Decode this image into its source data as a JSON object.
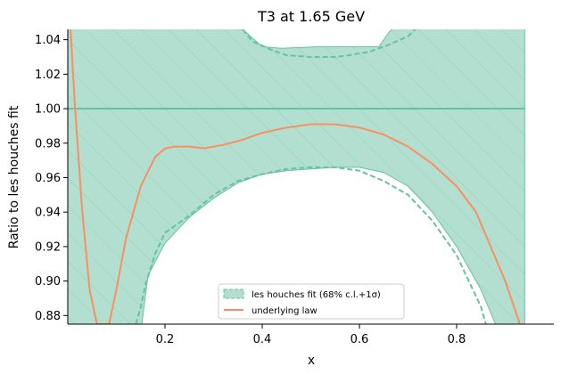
{
  "chart_data": {
    "type": "line",
    "title": "T3 at 1.65 GeV",
    "xlabel": "x",
    "ylabel": "Ratio to les houches fit",
    "xlim": [
      0.0,
      1.0
    ],
    "ylim": [
      0.875,
      1.046
    ],
    "xticks": [
      0.2,
      0.4,
      0.6,
      0.8
    ],
    "xtick_labels": [
      "0.2",
      "0.4",
      "0.6",
      "0.8"
    ],
    "yticks": [
      0.88,
      0.9,
      0.92,
      0.94,
      0.96,
      0.98,
      1.0,
      1.02,
      1.04
    ],
    "ytick_labels": [
      "0.88",
      "0.90",
      "0.92",
      "0.94",
      "0.96",
      "0.98",
      "1.00",
      "1.02",
      "1.04"
    ],
    "grid": false,
    "legend_position": "bottom-center",
    "colors": {
      "band": "#66c2a5",
      "band_fill": "#b2dfd0",
      "law": "#fc8d62"
    },
    "series": [
      {
        "name": "les houches fit (68% c.l.+1σ)",
        "kind": "band",
        "central": 1.0,
        "upper": [
          [
            0.0,
            1.05
          ],
          [
            0.18,
            1.05
          ],
          [
            0.36,
            1.046
          ],
          [
            0.4,
            1.036
          ],
          [
            0.44,
            1.035
          ],
          [
            0.52,
            1.036
          ],
          [
            0.6,
            1.036
          ],
          [
            0.64,
            1.036
          ],
          [
            0.66,
            1.044
          ],
          [
            0.68,
            1.05
          ],
          [
            0.94,
            1.05
          ]
        ],
        "lower": [
          [
            0.0,
            0.87
          ],
          [
            0.15,
            0.87
          ],
          [
            0.165,
            0.903
          ],
          [
            0.2,
            0.922
          ],
          [
            0.25,
            0.937
          ],
          [
            0.3,
            0.948
          ],
          [
            0.35,
            0.957
          ],
          [
            0.4,
            0.962
          ],
          [
            0.45,
            0.964
          ],
          [
            0.5,
            0.965
          ],
          [
            0.55,
            0.966
          ],
          [
            0.6,
            0.966
          ],
          [
            0.65,
            0.963
          ],
          [
            0.7,
            0.955
          ],
          [
            0.75,
            0.94
          ],
          [
            0.8,
            0.92
          ],
          [
            0.85,
            0.895
          ],
          [
            0.88,
            0.875
          ],
          [
            0.94,
            0.875
          ]
        ],
        "upper_68": [
          [
            0.36,
            1.046
          ],
          [
            0.38,
            1.039
          ],
          [
            0.42,
            1.034
          ],
          [
            0.45,
            1.031
          ],
          [
            0.5,
            1.03
          ],
          [
            0.55,
            1.03
          ],
          [
            0.58,
            1.031
          ],
          [
            0.62,
            1.033
          ],
          [
            0.66,
            1.037
          ],
          [
            0.7,
            1.042
          ],
          [
            0.73,
            1.05
          ]
        ],
        "lower_68": [
          [
            0.14,
            0.875
          ],
          [
            0.15,
            0.885
          ],
          [
            0.16,
            0.898
          ],
          [
            0.18,
            0.916
          ],
          [
            0.2,
            0.928
          ],
          [
            0.25,
            0.938
          ],
          [
            0.3,
            0.95
          ],
          [
            0.35,
            0.958
          ],
          [
            0.4,
            0.962
          ],
          [
            0.45,
            0.965
          ],
          [
            0.5,
            0.966
          ],
          [
            0.55,
            0.966
          ],
          [
            0.6,
            0.964
          ],
          [
            0.65,
            0.958
          ],
          [
            0.7,
            0.95
          ],
          [
            0.75,
            0.935
          ],
          [
            0.8,
            0.915
          ],
          [
            0.85,
            0.885
          ],
          [
            0.86,
            0.875
          ]
        ]
      },
      {
        "name": "underlying law",
        "kind": "line",
        "points": [
          [
            0.005,
            1.05
          ],
          [
            0.015,
            1.0
          ],
          [
            0.03,
            0.94
          ],
          [
            0.045,
            0.895
          ],
          [
            0.06,
            0.875
          ],
          [
            0.085,
            0.875
          ],
          [
            0.1,
            0.895
          ],
          [
            0.12,
            0.925
          ],
          [
            0.15,
            0.955
          ],
          [
            0.18,
            0.972
          ],
          [
            0.2,
            0.977
          ],
          [
            0.22,
            0.978
          ],
          [
            0.25,
            0.978
          ],
          [
            0.28,
            0.977
          ],
          [
            0.32,
            0.979
          ],
          [
            0.36,
            0.982
          ],
          [
            0.4,
            0.986
          ],
          [
            0.45,
            0.989
          ],
          [
            0.5,
            0.991
          ],
          [
            0.55,
            0.991
          ],
          [
            0.6,
            0.989
          ],
          [
            0.65,
            0.985
          ],
          [
            0.7,
            0.978
          ],
          [
            0.75,
            0.968
          ],
          [
            0.8,
            0.955
          ],
          [
            0.84,
            0.94
          ],
          [
            0.87,
            0.92
          ],
          [
            0.9,
            0.9
          ],
          [
            0.93,
            0.875
          ]
        ]
      }
    ]
  }
}
